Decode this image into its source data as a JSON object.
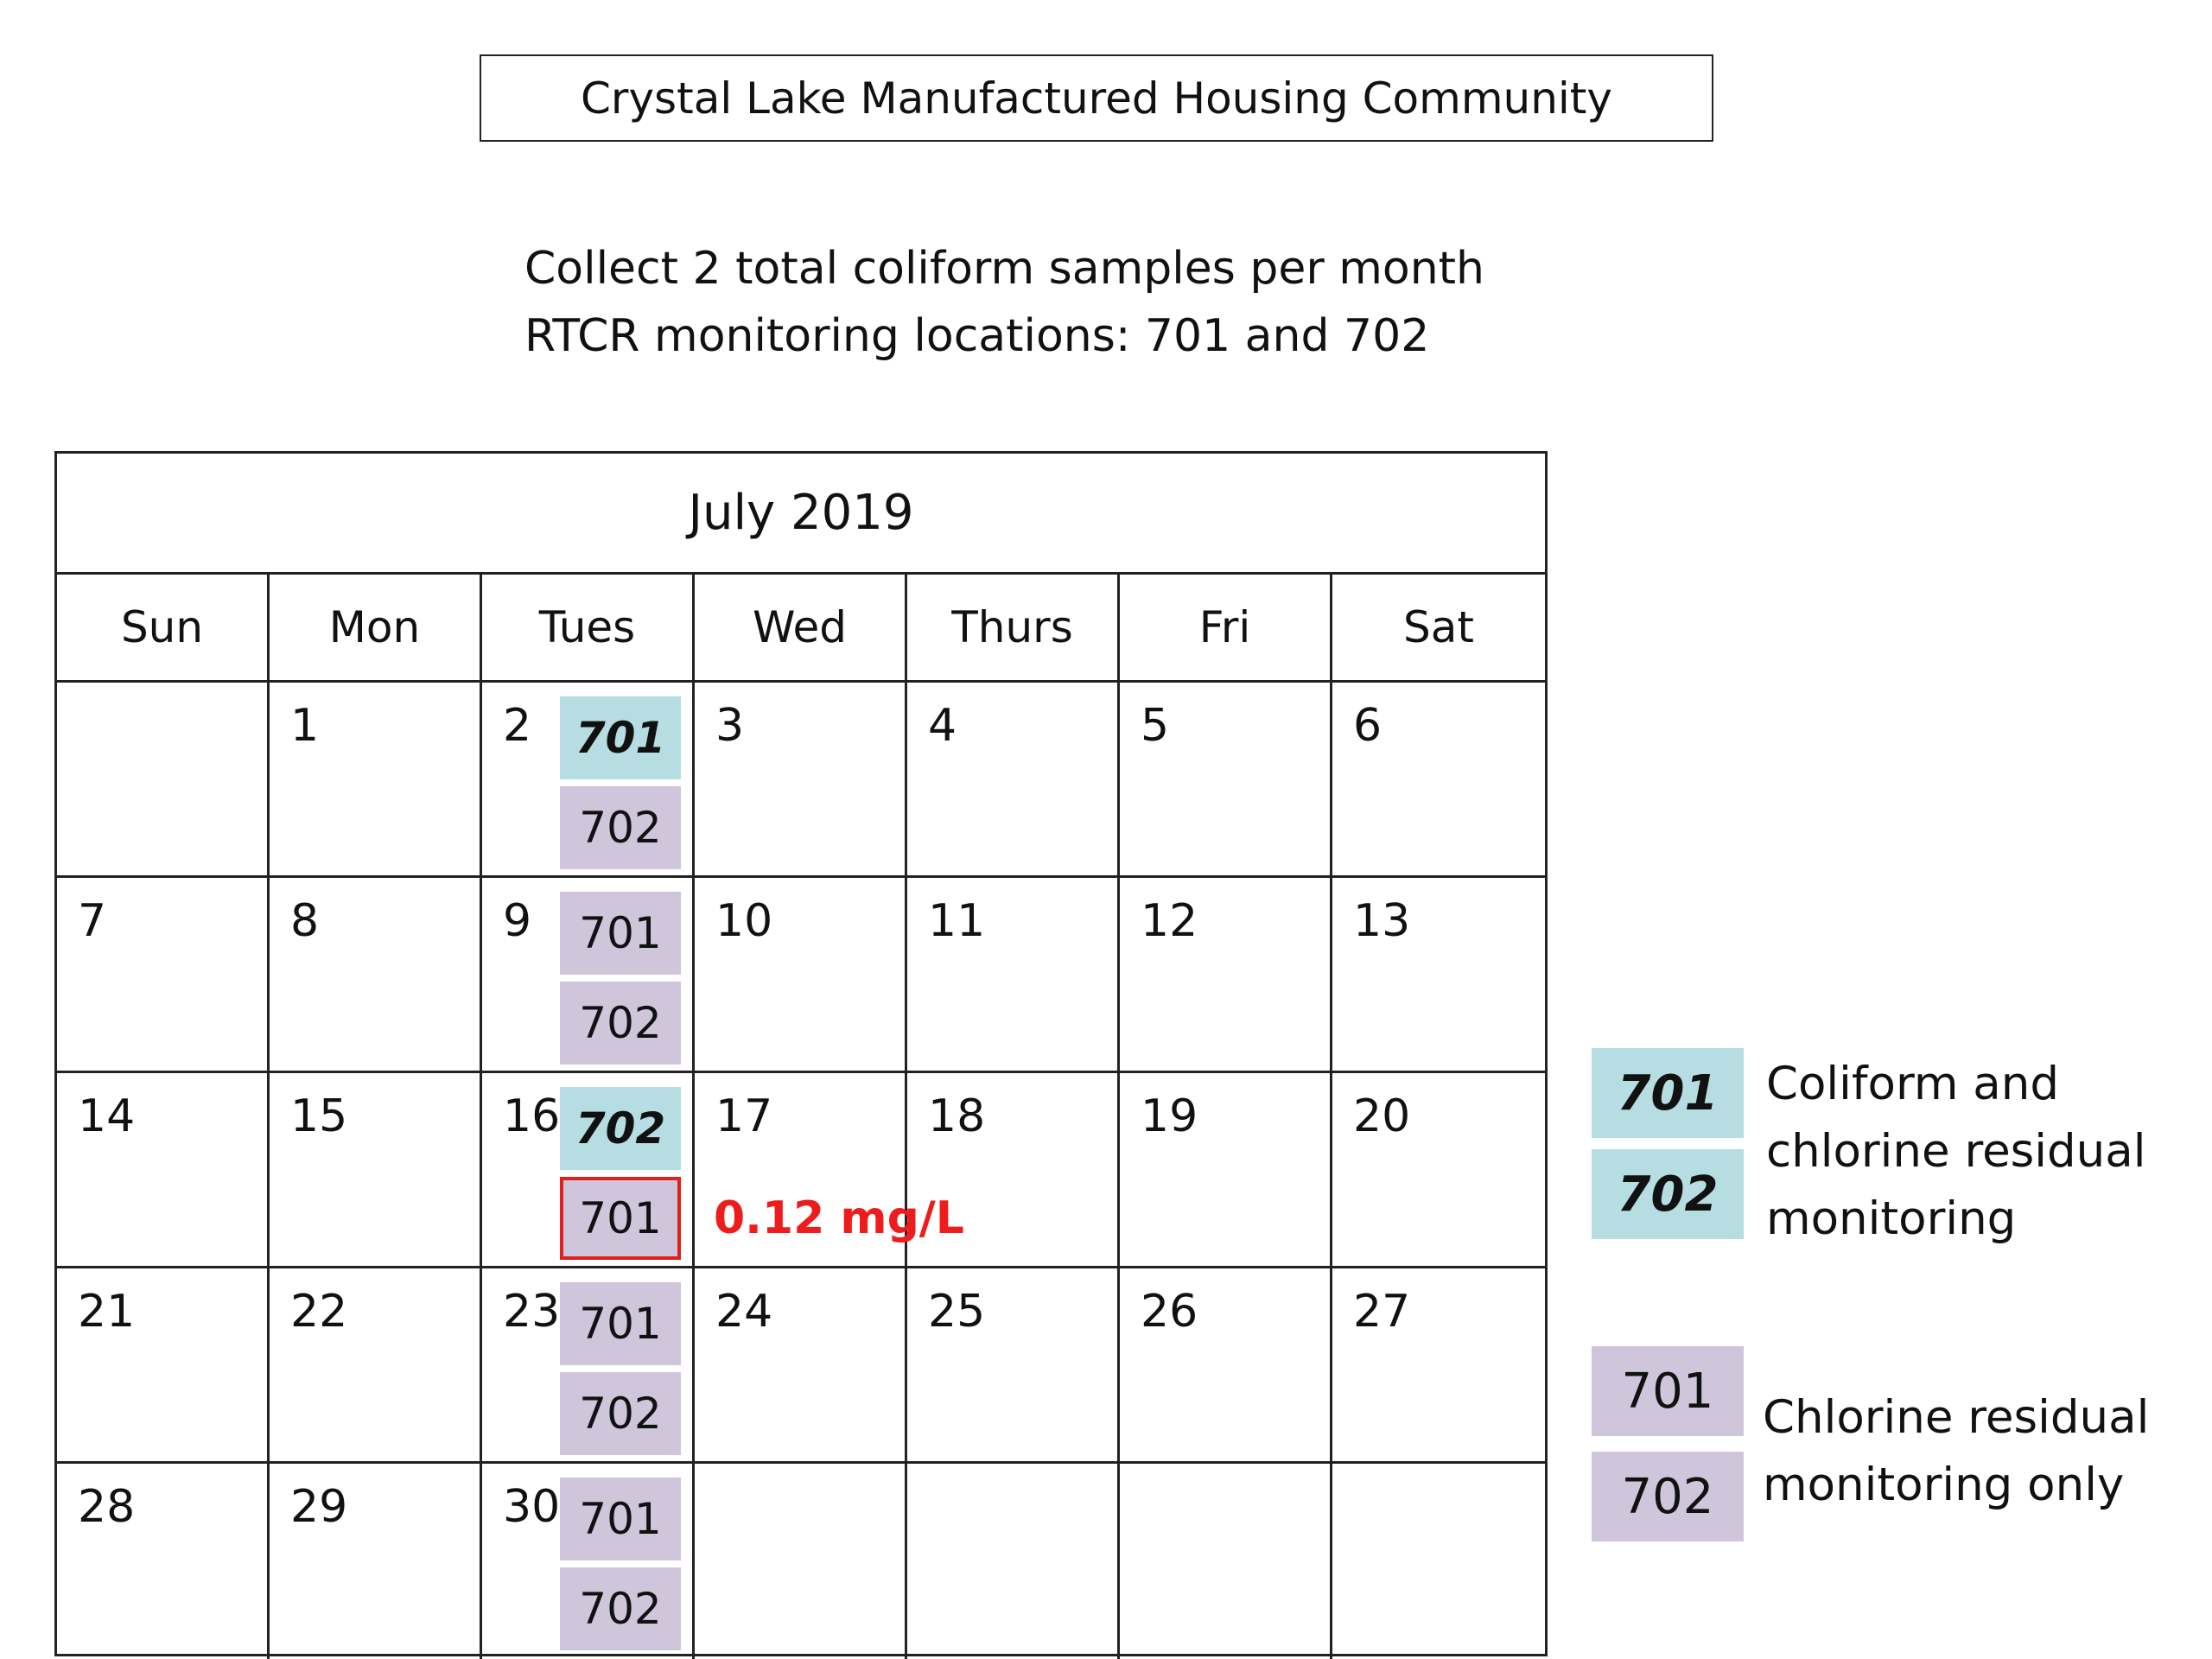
{
  "title": "Crystal Lake Manufactured Housing Community",
  "instructions": {
    "line1": "Collect 2 total coliform samples per month",
    "line2": "RTCR monitoring locations: 701 and 702"
  },
  "calendar": {
    "month": "July 2019",
    "days": [
      "Sun",
      "Mon",
      "Tues",
      "Wed",
      "Thurs",
      "Fri",
      "Sat"
    ],
    "weeks": [
      {
        "dates": [
          "",
          "1",
          "2",
          "3",
          "4",
          "5",
          "6"
        ],
        "tue_top": {
          "label": "701",
          "kind": "teal"
        },
        "tue_bottom": {
          "label": "702",
          "kind": "purple"
        }
      },
      {
        "dates": [
          "7",
          "8",
          "9",
          "10",
          "11",
          "12",
          "13"
        ],
        "tue_top": {
          "label": "701",
          "kind": "purple"
        },
        "tue_bottom": {
          "label": "702",
          "kind": "purple"
        }
      },
      {
        "dates": [
          "14",
          "15",
          "16",
          "17",
          "18",
          "19",
          "20"
        ],
        "tue_top": {
          "label": "702",
          "kind": "teal"
        },
        "tue_bottom": {
          "label": "701",
          "kind": "purple flagged"
        }
      },
      {
        "dates": [
          "21",
          "22",
          "23",
          "24",
          "25",
          "26",
          "27"
        ],
        "tue_top": {
          "label": "701",
          "kind": "purple"
        },
        "tue_bottom": {
          "label": "702",
          "kind": "purple"
        }
      },
      {
        "dates": [
          "28",
          "29",
          "30",
          "",
          "",
          "",
          ""
        ],
        "tue_top": {
          "label": "701",
          "kind": "purple"
        },
        "tue_bottom": {
          "label": "702",
          "kind": "purple"
        }
      }
    ],
    "flagged_reading": "0.12 mg/L"
  },
  "legend": {
    "coliform": {
      "chips": [
        "701",
        "702"
      ],
      "lines": [
        "Coliform and",
        "chlorine residual",
        "monitoring"
      ]
    },
    "chlorine": {
      "chips": [
        "701",
        "702"
      ],
      "lines": [
        "Chlorine residual",
        "monitoring only"
      ]
    }
  },
  "colors": {
    "teal": "#b5dde2",
    "purple": "#cfc6dc",
    "flag_red": "#e0201e"
  }
}
